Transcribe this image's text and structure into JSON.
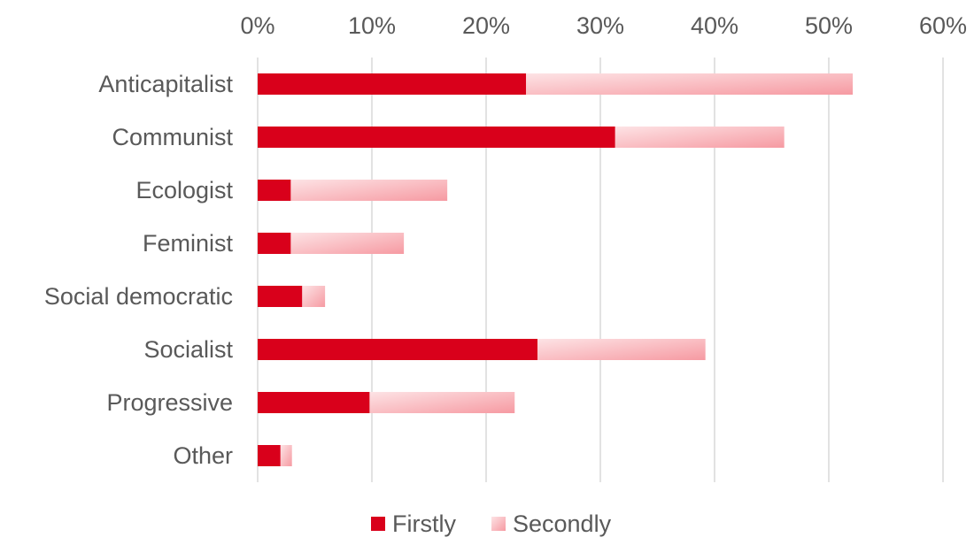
{
  "chart_data": {
    "type": "bar",
    "orientation": "horizontal",
    "stacked": true,
    "title": "",
    "xlabel": "",
    "ylabel": "",
    "categories": [
      "Anticapitalist",
      "Communist",
      "Ecologist",
      "Feminist",
      "Social democratic",
      "Socialist",
      "Progressive",
      "Other"
    ],
    "series": [
      {
        "name": "Firstly",
        "values": [
          23.5,
          31.3,
          2.9,
          2.9,
          3.9,
          24.5,
          9.8,
          2.0
        ],
        "color": "#d9001b"
      },
      {
        "name": "Secondly",
        "values": [
          28.6,
          14.8,
          13.7,
          9.9,
          2.0,
          14.7,
          12.7,
          1.0
        ],
        "color": "#f8a6ad",
        "gradient": true
      }
    ],
    "xlim": [
      0,
      60
    ],
    "xticks": [
      "0%",
      "10%",
      "20%",
      "30%",
      "40%",
      "50%",
      "60%"
    ],
    "xaxis_position": "top",
    "grid": true,
    "legend_position": "bottom"
  }
}
